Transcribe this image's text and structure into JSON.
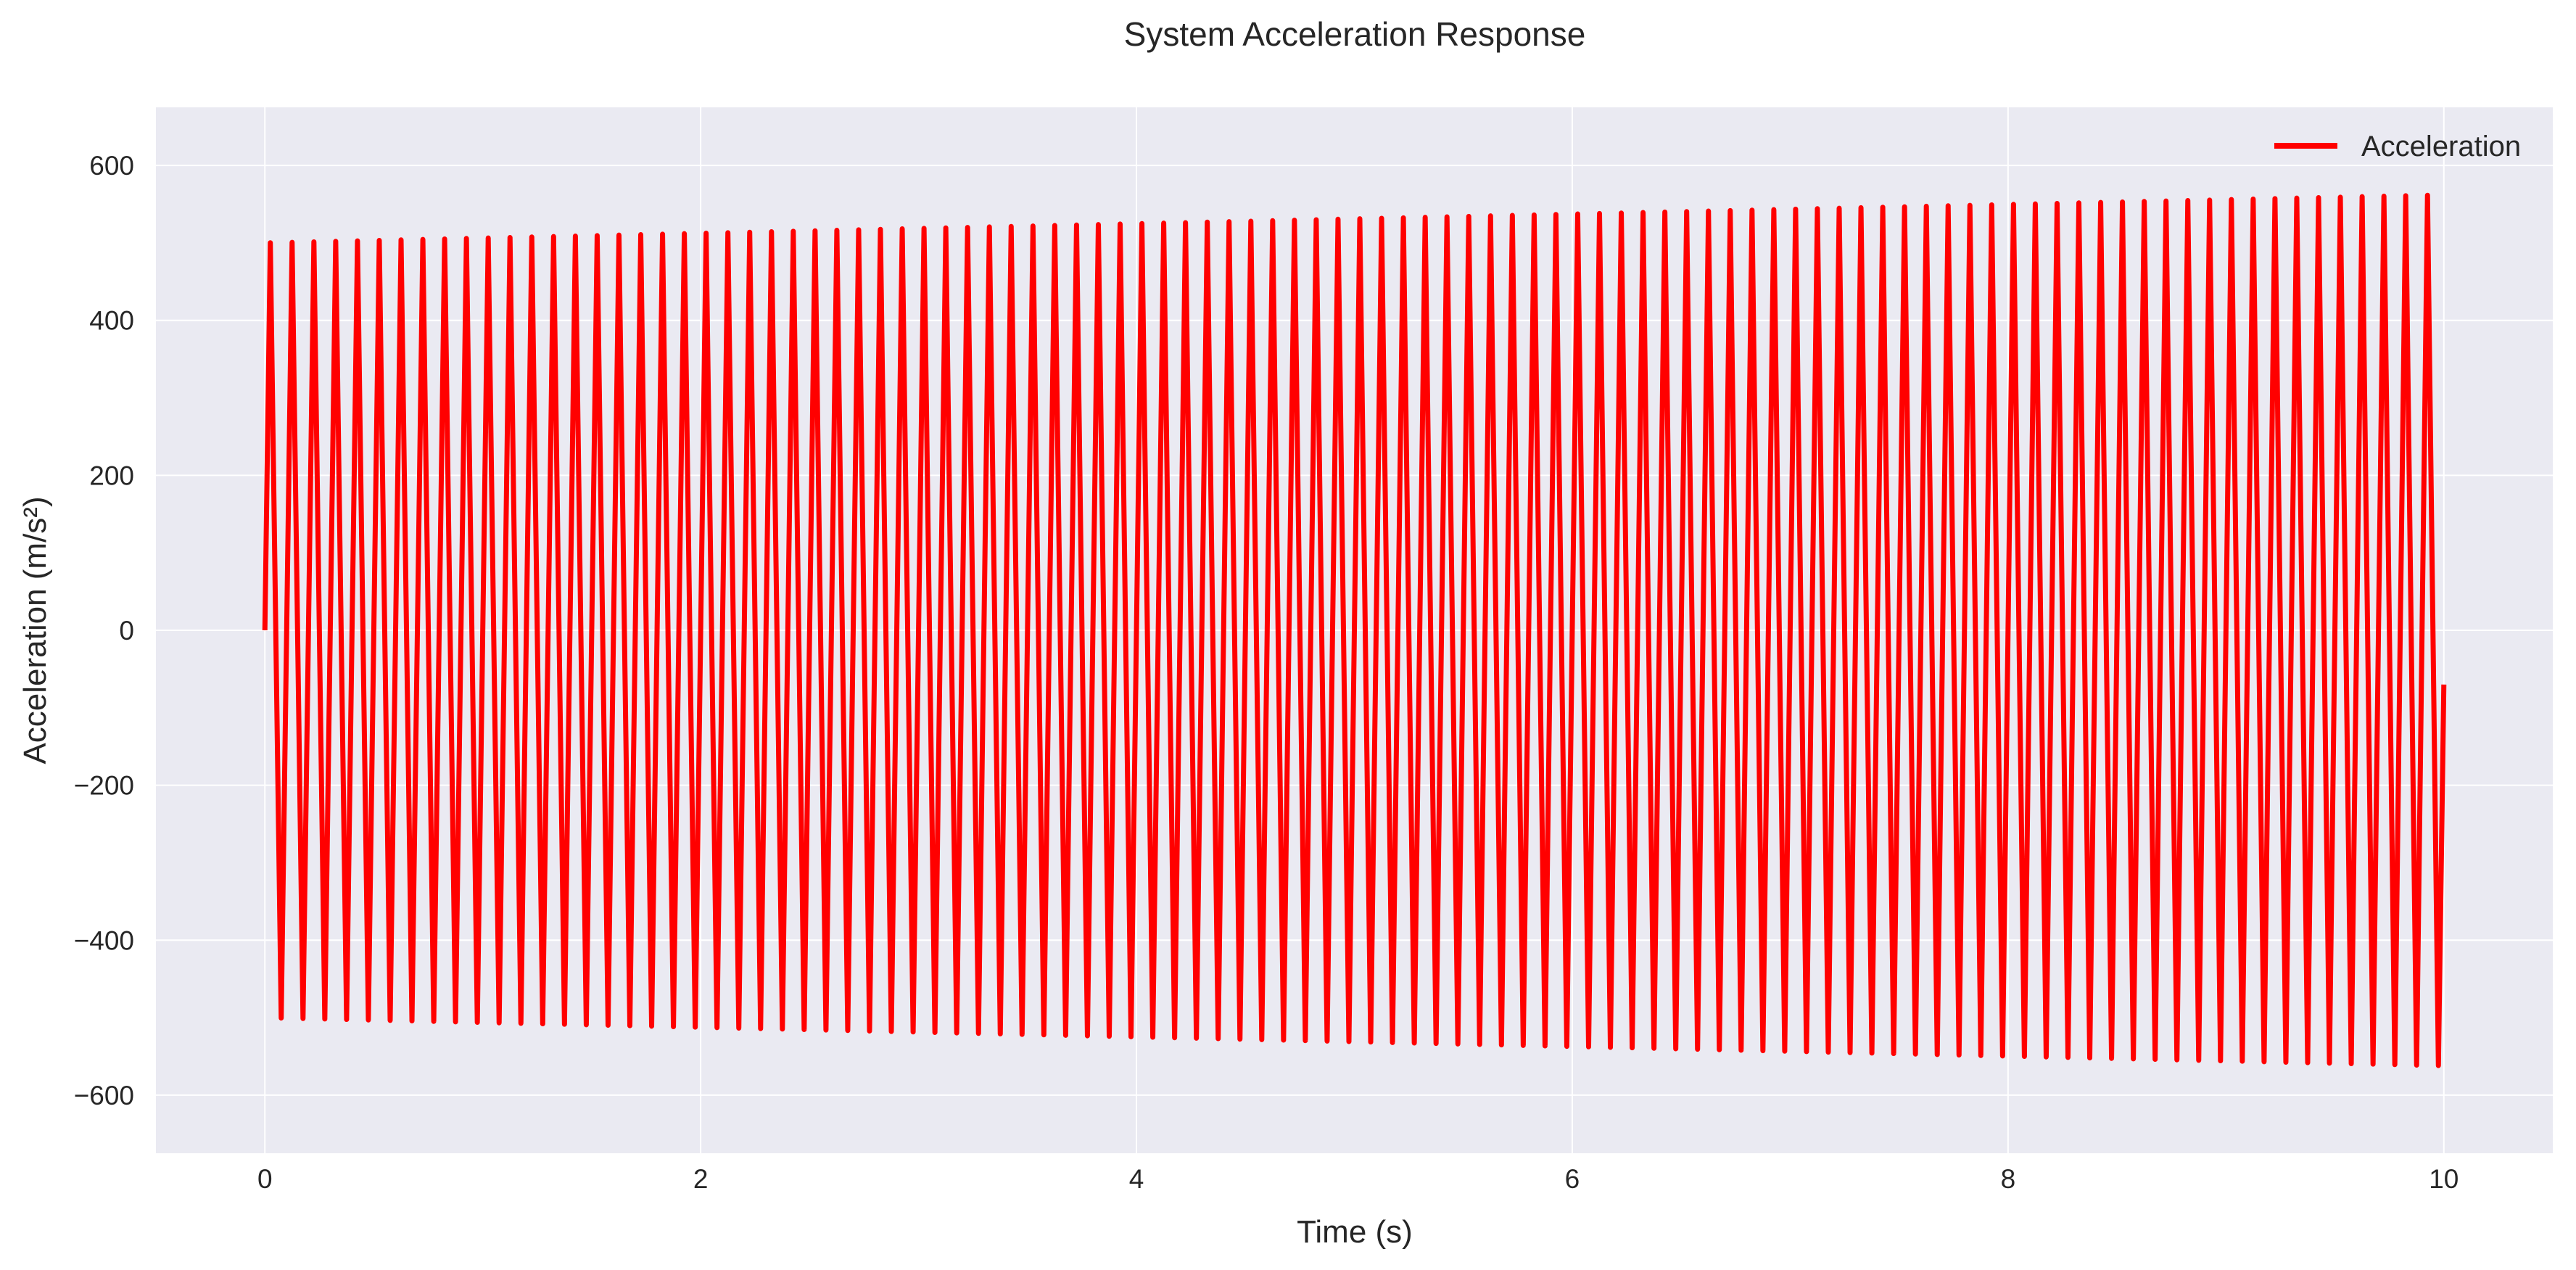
{
  "chart_data": {
    "type": "line",
    "title": "System Acceleration Response",
    "xlabel": "Time (s)",
    "ylabel": "Acceleration (m/s²)",
    "xlim": [
      -0.5,
      10.5
    ],
    "ylim": [
      -675,
      675
    ],
    "xticks": [
      0,
      2,
      4,
      6,
      8,
      10
    ],
    "xtick_labels": [
      "0",
      "2",
      "4",
      "6",
      "8",
      "10"
    ],
    "yticks": [
      -600,
      -400,
      -200,
      0,
      200,
      400,
      600
    ],
    "ytick_labels": [
      "−600",
      "−400",
      "−200",
      "0",
      "200",
      "400",
      "600"
    ],
    "grid": true,
    "legend": {
      "position": "top-right",
      "entries": [
        "Acceleration"
      ]
    },
    "series": [
      {
        "name": "Acceleration",
        "color": "#ff0000",
        "form": "sine with linearly growing amplitude",
        "start_time": 0,
        "end_time": 10,
        "frequency_hz": 10,
        "amplitude_start": 500,
        "amplitude_end": 562,
        "value_at_start": 0,
        "value_at_end": -70
      }
    ],
    "colors": {
      "plot_background": "#eaeaf2",
      "grid": "#ffffff",
      "line": "#ff0000"
    }
  }
}
